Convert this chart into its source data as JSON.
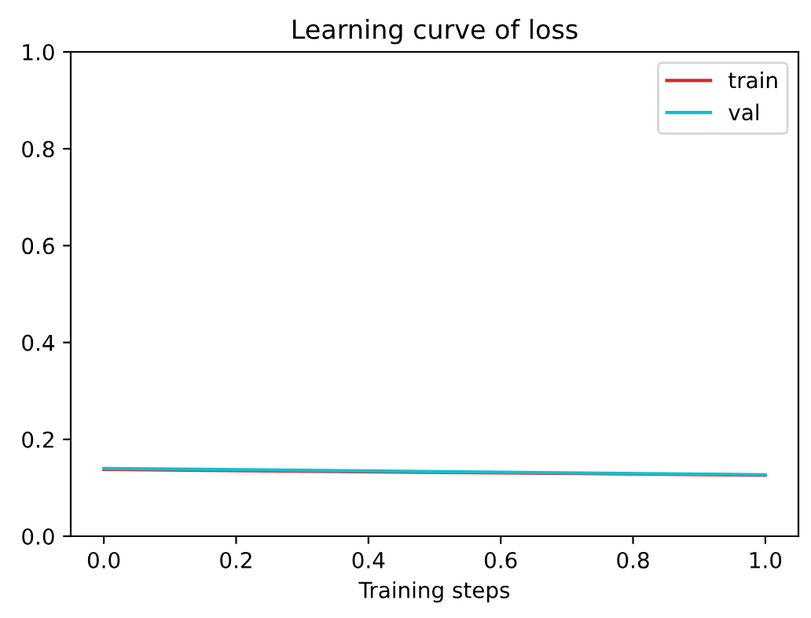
{
  "chart_data": {
    "type": "line",
    "title": "Learning curve of loss",
    "xlabel": "Training steps",
    "x": [
      0,
      1
    ],
    "series": [
      {
        "name": "train",
        "color": "#d62728",
        "values": [
          0.138,
          0.126
        ]
      },
      {
        "name": "val",
        "color": "#17becf",
        "values": [
          0.14,
          0.127
        ]
      }
    ],
    "xlim": [
      -0.05,
      1.05
    ],
    "xticks": [
      {
        "value": 0,
        "label": "0.0"
      },
      0.2,
      0.4,
      0.6,
      0.8,
      {
        "value": 1,
        "label": "1.0"
      }
    ],
    "ylim": [
      0,
      1
    ],
    "yticks": [
      {
        "value": 0,
        "label": "0.0"
      },
      0.2,
      0.4,
      0.6,
      0.8,
      {
        "value": 1,
        "label": "1.0"
      }
    ],
    "grid": false,
    "legend": "top right"
  }
}
